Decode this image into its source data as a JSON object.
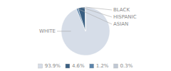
{
  "chart_data": {
    "type": "pie",
    "categories": [
      "WHITE",
      "ASIAN",
      "HISPANIC",
      "BLACK"
    ],
    "values": [
      93.9,
      1.2,
      4.6,
      0.3
    ],
    "value_labels": [
      "93.9%",
      "1.2%",
      "4.6%",
      "0.3%"
    ],
    "colors": [
      "#d6dde8",
      "#5b84aa",
      "#3a5f82",
      "#c0c8d4"
    ],
    "legend": "bottom"
  }
}
